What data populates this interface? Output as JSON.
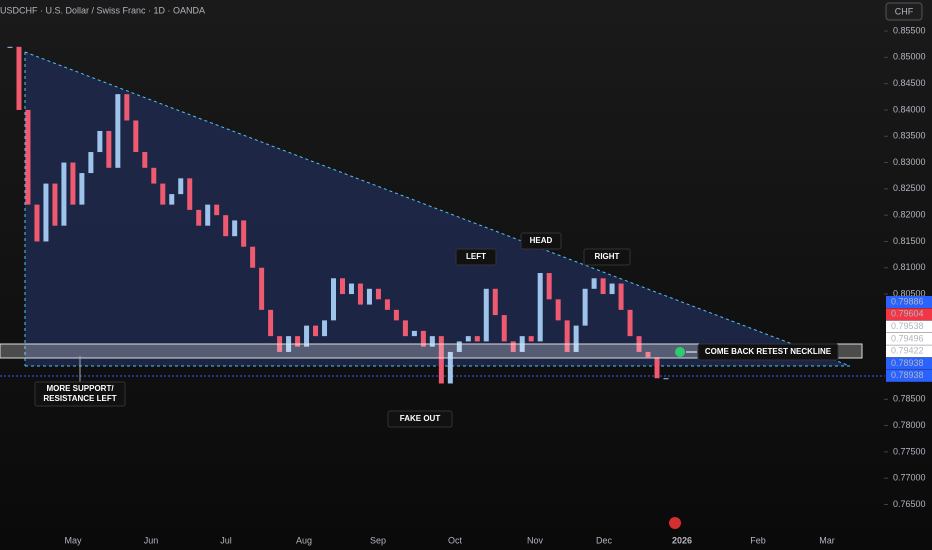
{
  "header": {
    "title": "USDCHF · U.S. Dollar / Swiss Franc · 1D · OANDA",
    "currency": "CHF"
  },
  "chart_data": {
    "type": "candlestick",
    "values": [
      0.852,
      0.84,
      0.822,
      0.815,
      0.826,
      0.818,
      0.83,
      0.822,
      0.828,
      0.832,
      0.836,
      0.829,
      0.843,
      0.838,
      0.832,
      0.829,
      0.826,
      0.822,
      0.824,
      0.827,
      0.821,
      0.818,
      0.822,
      0.82,
      0.816,
      0.819,
      0.814,
      0.81,
      0.802,
      0.797,
      0.794,
      0.797,
      0.795,
      0.799,
      0.797,
      0.8,
      0.808,
      0.805,
      0.807,
      0.803,
      0.806,
      0.804,
      0.802,
      0.8,
      0.797,
      0.798,
      0.795,
      0.797,
      0.788,
      0.794,
      0.796,
      0.797,
      0.796,
      0.806,
      0.801,
      0.796,
      0.794,
      0.797,
      0.796,
      0.809,
      0.804,
      0.8,
      0.794,
      0.799,
      0.806,
      0.808,
      0.805,
      0.807,
      0.802,
      0.797,
      0.794,
      0.793,
      0.789,
      0.789
    ],
    "up_color": "#9fc4ec",
    "down_color": "#ef5a70",
    "ylim": [
      0.7611,
      0.8609
    ],
    "yticks": [
      {
        "value": 0.855,
        "label": "0.85500"
      },
      {
        "value": 0.85,
        "label": "0.85000"
      },
      {
        "value": 0.845,
        "label": "0.84500"
      },
      {
        "value": 0.84,
        "label": "0.84000"
      },
      {
        "value": 0.835,
        "label": "0.83500"
      },
      {
        "value": 0.83,
        "label": "0.83000"
      },
      {
        "value": 0.825,
        "label": "0.82500"
      },
      {
        "value": 0.82,
        "label": "0.82000"
      },
      {
        "value": 0.815,
        "label": "0.81500"
      },
      {
        "value": 0.81,
        "label": "0.81000"
      },
      {
        "value": 0.805,
        "label": "0.80500"
      },
      {
        "value": 0.785,
        "label": "0.78500"
      },
      {
        "value": 0.78,
        "label": "0.78000"
      },
      {
        "value": 0.775,
        "label": "0.77500"
      },
      {
        "value": 0.77,
        "label": "0.77000"
      },
      {
        "value": 0.765,
        "label": "0.76500"
      }
    ],
    "xlabels": [
      "May",
      "Jun",
      "Jul",
      "Aug",
      "Sep",
      "Oct",
      "Nov",
      "Dec",
      "2026",
      "Feb",
      "Mar"
    ],
    "price_tags": [
      {
        "label": "0.79886",
        "color": "#2962ff"
      },
      {
        "label": "0.79604",
        "color": "#f23645"
      },
      {
        "label": "0.79538",
        "color": "#ffffff"
      },
      {
        "label": "0.79496",
        "color": "#ffffff"
      },
      {
        "label": "0.79422",
        "color": "#ffffff"
      },
      {
        "label": "0.78938",
        "color": "#2962ff"
      },
      {
        "label": "0.78938",
        "color": "#2962ff"
      }
    ],
    "annotations": [
      "LEFT",
      "HEAD",
      "RIGHT",
      "FAKE OUT",
      "MORE SUPPORT/",
      "RESISTANCE LEFT",
      "COME BACK RETEST NECKLINE"
    ]
  }
}
